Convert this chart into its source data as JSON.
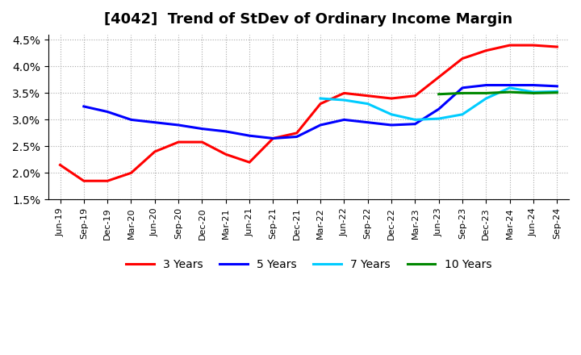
{
  "title": "[4042]  Trend of StDev of Ordinary Income Margin",
  "title_fontsize": 13,
  "background_color": "#ffffff",
  "plot_bg_color": "#ffffff",
  "grid_color": "#aaaaaa",
  "ylim": [
    0.015,
    0.046
  ],
  "yticks": [
    0.015,
    0.02,
    0.025,
    0.03,
    0.035,
    0.04,
    0.045
  ],
  "xtick_labels": [
    "Jun-19",
    "Sep-19",
    "Dec-19",
    "Mar-20",
    "Jun-20",
    "Sep-20",
    "Dec-20",
    "Mar-21",
    "Jun-21",
    "Sep-21",
    "Dec-21",
    "Mar-22",
    "Jun-22",
    "Sep-22",
    "Dec-22",
    "Mar-23",
    "Jun-23",
    "Sep-23",
    "Dec-23",
    "Mar-24",
    "Jun-24",
    "Sep-24"
  ],
  "series": {
    "3 Years": {
      "color": "#ff0000",
      "linewidth": 2.2,
      "xi": [
        0,
        1,
        2,
        3,
        4,
        5,
        6,
        7,
        8,
        9,
        10,
        11,
        12,
        13,
        14,
        15,
        16,
        17,
        18,
        19,
        20,
        21
      ],
      "y": [
        0.0215,
        0.0185,
        0.0185,
        0.02,
        0.024,
        0.0258,
        0.0258,
        0.0235,
        0.022,
        0.0265,
        0.0275,
        0.033,
        0.035,
        0.0345,
        0.034,
        0.0345,
        0.038,
        0.0415,
        0.043,
        0.044,
        0.044,
        0.0437
      ]
    },
    "5 Years": {
      "color": "#0000ff",
      "linewidth": 2.2,
      "xi": [
        1,
        2,
        3,
        4,
        5,
        6,
        7,
        8,
        9,
        10,
        11,
        12,
        13,
        14,
        15,
        16,
        17,
        18,
        19,
        20,
        21
      ],
      "y": [
        0.0325,
        0.0315,
        0.03,
        0.0295,
        0.029,
        0.0283,
        0.0278,
        0.027,
        0.0265,
        0.0268,
        0.029,
        0.03,
        0.0295,
        0.029,
        0.0292,
        0.032,
        0.036,
        0.0365,
        0.0365,
        0.0365,
        0.0363
      ]
    },
    "7 Years": {
      "color": "#00ccff",
      "linewidth": 2.2,
      "xi": [
        11,
        12,
        13,
        14,
        15,
        16,
        17,
        18,
        19,
        20,
        21
      ],
      "y": [
        0.034,
        0.0337,
        0.033,
        0.031,
        0.03,
        0.0302,
        0.031,
        0.034,
        0.036,
        0.0352,
        0.0353
      ]
    },
    "10 Years": {
      "color": "#008800",
      "linewidth": 2.2,
      "xi": [
        16,
        17,
        18,
        19,
        20,
        21
      ],
      "y": [
        0.0348,
        0.035,
        0.035,
        0.0352,
        0.035,
        0.0351
      ]
    }
  },
  "legend": {
    "labels": [
      "3 Years",
      "5 Years",
      "7 Years",
      "10 Years"
    ],
    "colors": [
      "#ff0000",
      "#0000ff",
      "#00ccff",
      "#008800"
    ],
    "ncol": 4,
    "fontsize": 10
  }
}
